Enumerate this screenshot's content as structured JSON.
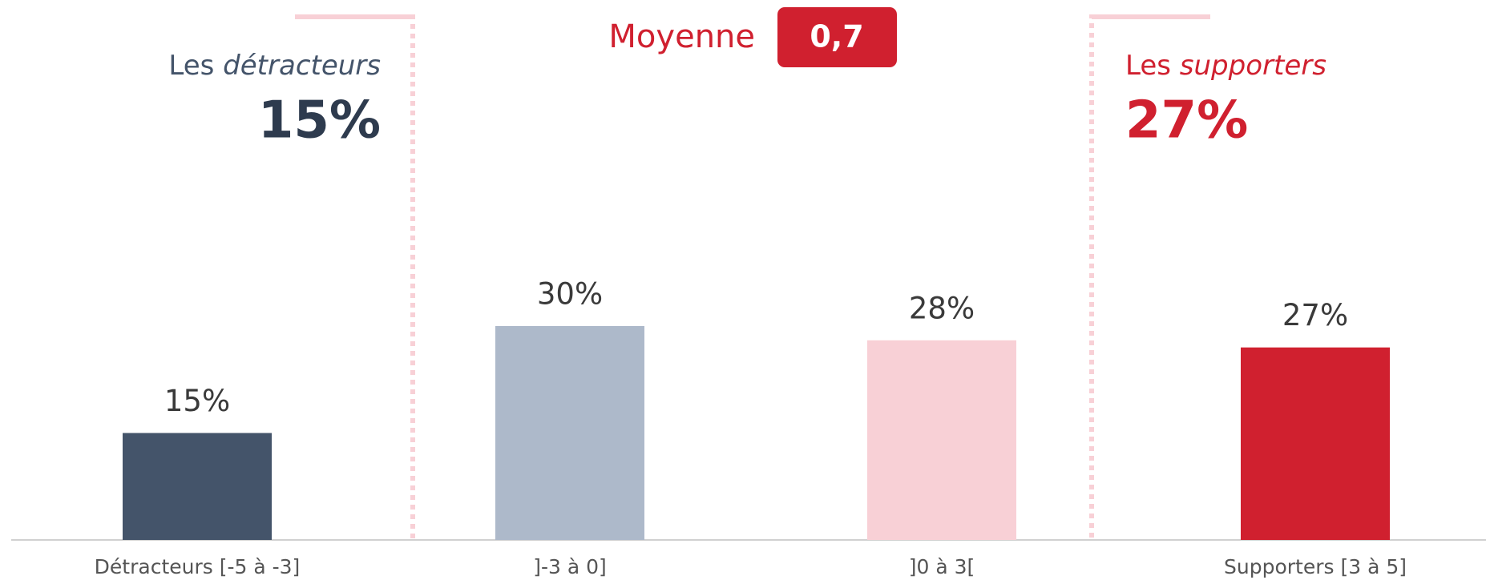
{
  "chart_data": {
    "type": "bar",
    "categories": [
      "Détracteurs [-5 à -3]",
      "]-3 à 0]",
      "]0 à 3[",
      "Supporters [3 à 5]"
    ],
    "values": [
      15,
      30,
      28,
      27
    ],
    "value_labels": [
      "15%",
      "30%",
      "28%",
      "27%"
    ],
    "colors": [
      "#44546a",
      "#adb9ca",
      "#f8d0d6",
      "#d0202f"
    ],
    "annotations": {
      "detractors": {
        "prefix": "Les",
        "emphasis": "détracteurs",
        "value": 15,
        "value_label": "15%"
      },
      "average": {
        "label": "Moyenne",
        "value": 0.7,
        "value_label": "0,7"
      },
      "supporters": {
        "prefix": "Les",
        "emphasis": "supporters",
        "value": 27,
        "value_label": "27%"
      }
    }
  }
}
